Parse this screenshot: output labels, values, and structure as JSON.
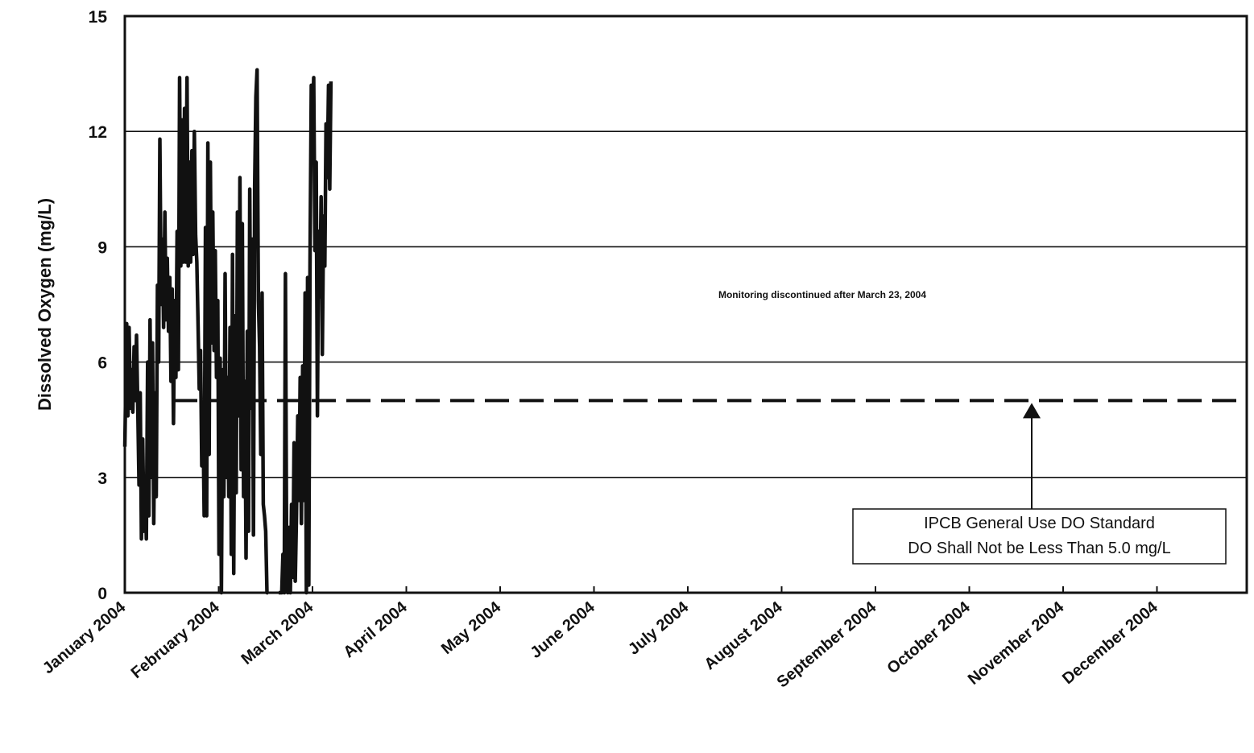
{
  "chart_data": {
    "type": "line",
    "title": "",
    "xlabel": "",
    "ylabel": "Dissolved Oxygen (mg/L)",
    "ylim": [
      0,
      15
    ],
    "yticks": [
      "0",
      "3",
      "6",
      "9",
      "12",
      "15"
    ],
    "x_tick_labels": [
      "January 2004",
      "February 2004",
      "March 2004",
      "April 2004",
      "May 2004",
      "June 2004",
      "July 2004",
      "August 2004",
      "September 2004",
      "October 2004",
      "November 2004",
      "December 2004"
    ],
    "grid": "horizontal",
    "legend": "none",
    "series": [
      {
        "values": [
          [
            0.0,
            3.8
          ],
          [
            0.6,
            7.0
          ],
          [
            1.0,
            4.6
          ],
          [
            1.4,
            6.9
          ],
          [
            1.8,
            4.8
          ],
          [
            2.2,
            5.8
          ],
          [
            2.6,
            4.7
          ],
          [
            3.0,
            6.4
          ],
          [
            3.4,
            5.0
          ],
          [
            3.8,
            6.7
          ],
          [
            4.2,
            4.9
          ],
          [
            4.6,
            2.8
          ],
          [
            5.0,
            5.2
          ],
          [
            5.4,
            1.4
          ],
          [
            5.8,
            4.0
          ],
          [
            6.2,
            1.6
          ],
          [
            6.6,
            3.0
          ],
          [
            7.0,
            1.4
          ],
          [
            7.4,
            6.0
          ],
          [
            7.8,
            2.0
          ],
          [
            8.2,
            7.1
          ],
          [
            8.6,
            3.0
          ],
          [
            9.0,
            6.5
          ],
          [
            9.4,
            1.8
          ],
          [
            9.8,
            5.2
          ],
          [
            10.2,
            2.5
          ],
          [
            10.6,
            8.0
          ],
          [
            11.0,
            6.0
          ],
          [
            11.4,
            11.8
          ],
          [
            11.8,
            7.5
          ],
          [
            12.2,
            9.2
          ],
          [
            12.6,
            6.9
          ],
          [
            13.0,
            9.9
          ],
          [
            13.4,
            7.1
          ],
          [
            13.8,
            8.7
          ],
          [
            14.2,
            6.8
          ],
          [
            14.6,
            8.2
          ],
          [
            15.0,
            5.5
          ],
          [
            15.4,
            7.9
          ],
          [
            15.8,
            4.4
          ],
          [
            16.2,
            7.6
          ],
          [
            16.6,
            5.6
          ],
          [
            17.0,
            9.4
          ],
          [
            17.4,
            5.8
          ],
          [
            17.8,
            13.4
          ],
          [
            18.2,
            8.5
          ],
          [
            18.6,
            12.3
          ],
          [
            19.0,
            8.6
          ],
          [
            19.4,
            12.6
          ],
          [
            19.8,
            8.6
          ],
          [
            20.2,
            13.4
          ],
          [
            20.6,
            8.5
          ],
          [
            21.0,
            11.2
          ],
          [
            21.4,
            8.6
          ],
          [
            21.8,
            11.5
          ],
          [
            22.2,
            8.8
          ],
          [
            22.6,
            12.0
          ],
          [
            23.0,
            9.3
          ],
          [
            23.4,
            8.6
          ],
          [
            23.8,
            7.0
          ],
          [
            24.2,
            5.3
          ],
          [
            24.6,
            6.3
          ],
          [
            25.0,
            3.3
          ],
          [
            25.4,
            4.7
          ],
          [
            25.8,
            2.0
          ],
          [
            26.2,
            9.5
          ],
          [
            26.6,
            2.0
          ],
          [
            27.0,
            11.7
          ],
          [
            27.4,
            3.6
          ],
          [
            27.8,
            11.2
          ],
          [
            28.2,
            6.5
          ],
          [
            28.6,
            9.9
          ],
          [
            29.0,
            6.3
          ],
          [
            29.4,
            8.9
          ],
          [
            29.8,
            5.6
          ],
          [
            30.2,
            7.6
          ],
          [
            30.6,
            1.0
          ],
          [
            31.0,
            6.1
          ],
          [
            31.4,
            0.0
          ],
          [
            31.8,
            5.8
          ],
          [
            32.2,
            2.5
          ],
          [
            32.6,
            8.3
          ],
          [
            33.0,
            3.0
          ],
          [
            33.4,
            5.6
          ],
          [
            33.8,
            2.5
          ],
          [
            34.2,
            6.9
          ],
          [
            34.6,
            1.0
          ],
          [
            35.0,
            8.8
          ],
          [
            35.4,
            0.5
          ],
          [
            35.8,
            7.2
          ],
          [
            36.2,
            2.6
          ],
          [
            36.6,
            9.9
          ],
          [
            37.0,
            4.6
          ],
          [
            37.4,
            10.8
          ],
          [
            37.8,
            3.2
          ],
          [
            38.2,
            9.6
          ],
          [
            38.6,
            2.5
          ],
          [
            39.0,
            5.5
          ],
          [
            39.4,
            0.9
          ],
          [
            39.8,
            6.8
          ],
          [
            40.2,
            1.6
          ],
          [
            40.6,
            10.5
          ],
          [
            41.0,
            4.8
          ],
          [
            41.4,
            9.2
          ],
          [
            41.8,
            1.5
          ],
          [
            42.2,
            10.6
          ],
          [
            42.6,
            12.9
          ],
          [
            43.0,
            13.6
          ],
          [
            43.4,
            7.6
          ],
          [
            43.8,
            6.4
          ],
          [
            44.2,
            3.6
          ],
          [
            44.6,
            7.8
          ],
          [
            45.0,
            2.3
          ],
          [
            45.4,
            2.0
          ],
          [
            45.8,
            1.6
          ],
          [
            46.2,
            0.0
          ],
          [
            46.6,
            0.0
          ],
          [
            50.0,
            0.0
          ],
          [
            50.6,
            0.0
          ],
          [
            51.0,
            0.0
          ],
          [
            51.4,
            1.0
          ],
          [
            51.8,
            0.0
          ],
          [
            52.2,
            8.3
          ],
          [
            52.6,
            1.0
          ],
          [
            53.0,
            0.0
          ],
          [
            53.4,
            1.7
          ],
          [
            53.8,
            0.0
          ],
          [
            54.2,
            2.3
          ],
          [
            54.6,
            0.4
          ],
          [
            55.0,
            3.9
          ],
          [
            55.4,
            0.3
          ],
          [
            55.8,
            2.0
          ],
          [
            56.2,
            4.6
          ],
          [
            56.6,
            2.4
          ],
          [
            57.0,
            5.6
          ],
          [
            57.4,
            1.8
          ],
          [
            57.8,
            5.9
          ],
          [
            58.2,
            2.4
          ],
          [
            58.6,
            7.8
          ],
          [
            59.0,
            0.0
          ],
          [
            59.4,
            8.2
          ],
          [
            59.8,
            0.2
          ],
          [
            60.2,
            8.5
          ],
          [
            60.6,
            13.2
          ],
          [
            61.0,
            12.3
          ],
          [
            61.4,
            13.4
          ],
          [
            61.8,
            8.9
          ],
          [
            62.2,
            11.2
          ],
          [
            62.6,
            4.6
          ],
          [
            63.0,
            9.4
          ],
          [
            63.4,
            7.7
          ],
          [
            63.8,
            10.3
          ],
          [
            64.2,
            6.2
          ],
          [
            64.6,
            9.8
          ],
          [
            65.0,
            8.5
          ],
          [
            65.4,
            12.2
          ],
          [
            65.8,
            10.8
          ],
          [
            66.2,
            13.2
          ],
          [
            66.6,
            10.5
          ],
          [
            67.0,
            13.3
          ]
        ]
      }
    ],
    "reference_line": {
      "value": 5.0,
      "style": "dashed"
    },
    "annotations": [
      {
        "text": "Monitoring discontinued after March 23, 2004"
      },
      {
        "lines": [
          "IPCB General Use DO Standard",
          "DO Shall Not be Less Than 5.0 mg/L"
        ]
      }
    ]
  }
}
